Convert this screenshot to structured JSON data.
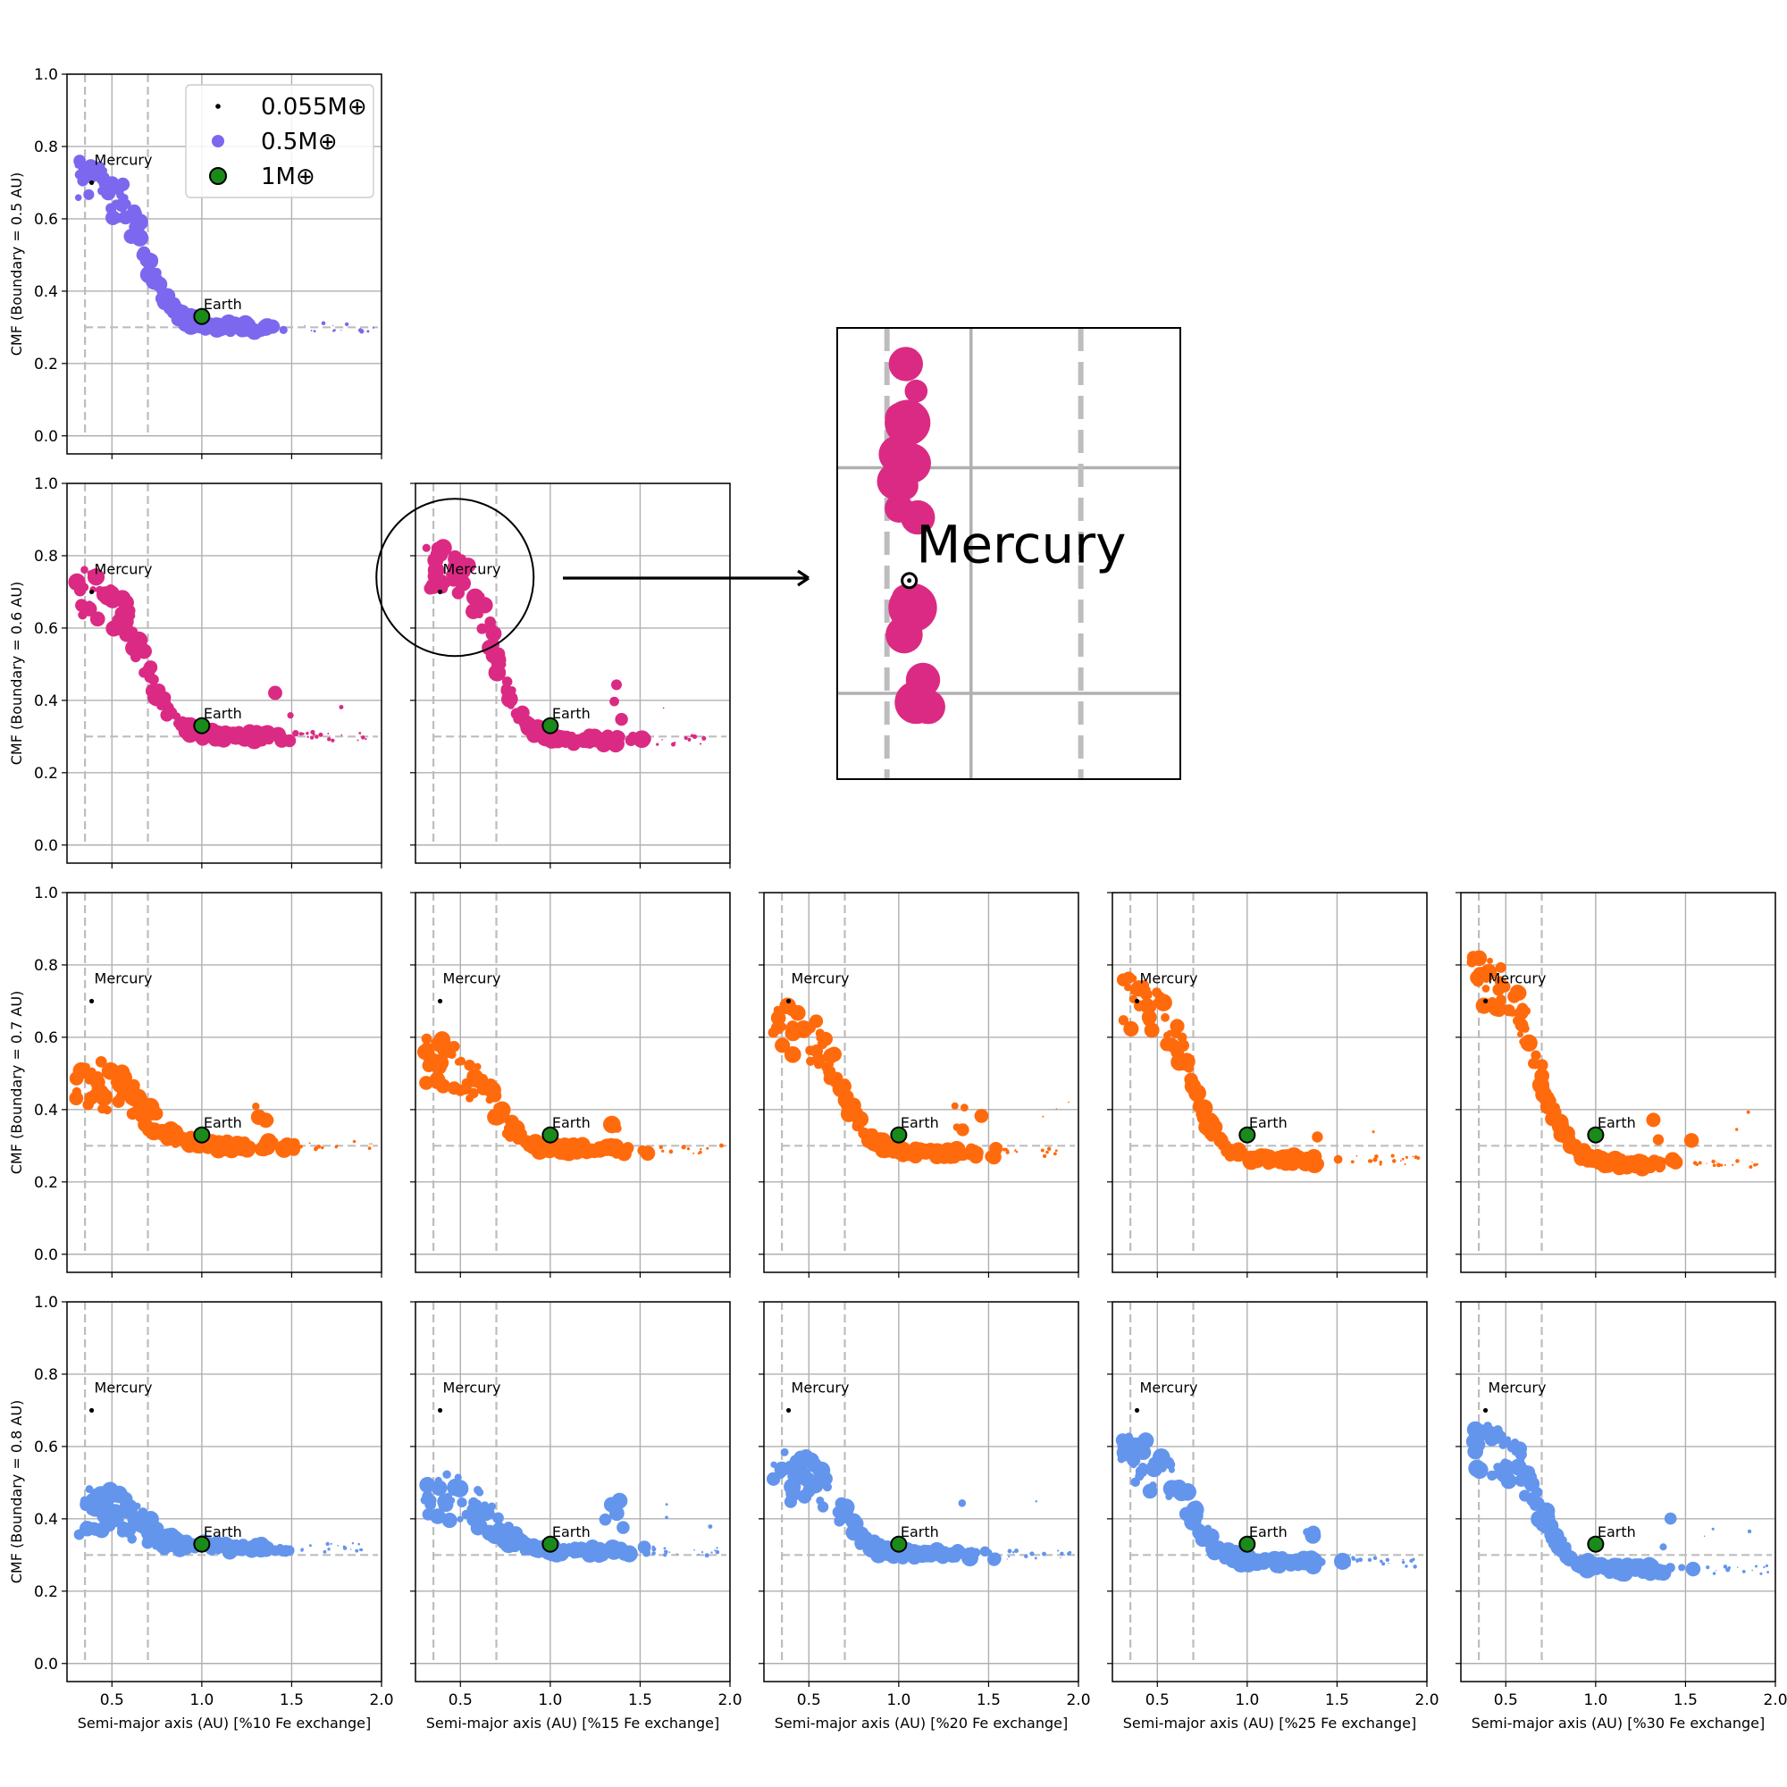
{
  "chart_data": {
    "type": "scatter",
    "xlim": [
      0.25,
      2.0
    ],
    "ylim": [
      -0.05,
      1.0
    ],
    "x_ticks": [
      "0.5",
      "1.0",
      "1.5",
      "2.0"
    ],
    "y_ticks": [
      "0.0",
      "0.2",
      "0.4",
      "0.6",
      "0.8",
      "1.0"
    ],
    "legend": [
      {
        "label": "0.055M⊕",
        "mass": 0.055,
        "color": "#000000"
      },
      {
        "label": "0.5M⊕",
        "mass": 0.5,
        "color": "#7b68ee"
      },
      {
        "label": "1M⊕",
        "mass": 1,
        "color": "#1a8a1a"
      }
    ],
    "reference_lines": {
      "x": [
        0.35,
        0.7
      ],
      "y": 0.3
    },
    "markers": {
      "mercury": {
        "label": "Mercury",
        "x": 0.387,
        "y": 0.7
      },
      "earth": {
        "label": "Earth",
        "x": 1.0,
        "y": 0.33
      }
    },
    "row_labels": [
      "CMF (Boundary = 0.5 AU)",
      "CMF (Boundary = 0.6 AU)",
      "CMF (Boundary = 0.7 AU)",
      "CMF (Boundary = 0.8 AU)"
    ],
    "column_labels": [
      "Semi-major axis (AU) [%10 Fe exchange]",
      "Semi-major axis (AU) [%15 Fe exchange]",
      "Semi-major axis (AU) [%20 Fe exchange]",
      "Semi-major axis (AU) [%25 Fe exchange]",
      "Semi-major axis (AU) [%30 Fe exchange]"
    ],
    "row_colors": [
      "#7b68ee",
      "#db2a84",
      "#ff6a0d",
      "#6495ed"
    ],
    "trend_parameters": [
      {
        "row": 0,
        "col": 0,
        "inner_cmf": 0.7,
        "outer_cmf": 0.3
      },
      {
        "row": 1,
        "col": 0,
        "inner_cmf": 0.7,
        "outer_cmf": 0.3
      },
      {
        "row": 1,
        "col": 1,
        "inner_cmf": 0.78,
        "outer_cmf": 0.29
      },
      {
        "row": 2,
        "col": 0,
        "inner_cmf": 0.47,
        "outer_cmf": 0.3
      },
      {
        "row": 2,
        "col": 1,
        "inner_cmf": 0.53,
        "outer_cmf": 0.29
      },
      {
        "row": 2,
        "col": 2,
        "inner_cmf": 0.63,
        "outer_cmf": 0.28
      },
      {
        "row": 2,
        "col": 3,
        "inner_cmf": 0.7,
        "outer_cmf": 0.26
      },
      {
        "row": 2,
        "col": 4,
        "inner_cmf": 0.76,
        "outer_cmf": 0.25
      },
      {
        "row": 3,
        "col": 0,
        "inner_cmf": 0.42,
        "outer_cmf": 0.32
      },
      {
        "row": 3,
        "col": 1,
        "inner_cmf": 0.47,
        "outer_cmf": 0.31
      },
      {
        "row": 3,
        "col": 2,
        "inner_cmf": 0.52,
        "outer_cmf": 0.3
      },
      {
        "row": 3,
        "col": 3,
        "inner_cmf": 0.56,
        "outer_cmf": 0.28
      },
      {
        "row": 3,
        "col": 4,
        "inner_cmf": 0.6,
        "outer_cmf": 0.26
      }
    ],
    "zoom": {
      "source_panel": {
        "row": 1,
        "col": 1
      },
      "label": "Mercury",
      "points": [
        {
          "x": 0.4,
          "y": 0.92,
          "s": 2.4
        },
        {
          "x": 0.46,
          "y": 0.86,
          "s": 1.6
        },
        {
          "x": 0.37,
          "y": 0.8,
          "s": 2.2
        },
        {
          "x": 0.41,
          "y": 0.79,
          "s": 3.2
        },
        {
          "x": 0.35,
          "y": 0.72,
          "s": 2.6
        },
        {
          "x": 0.43,
          "y": 0.7,
          "s": 2.8
        },
        {
          "x": 0.34,
          "y": 0.66,
          "s": 2.6
        },
        {
          "x": 0.39,
          "y": 0.65,
          "s": 2.0
        },
        {
          "x": 0.36,
          "y": 0.6,
          "s": 2.0
        },
        {
          "x": 0.47,
          "y": 0.58,
          "s": 2.4
        },
        {
          "x": 0.4,
          "y": 0.4,
          "s": 2.0
        },
        {
          "x": 0.44,
          "y": 0.38,
          "s": 3.4
        },
        {
          "x": 0.39,
          "y": 0.32,
          "s": 2.6
        },
        {
          "x": 0.5,
          "y": 0.22,
          "s": 2.4
        },
        {
          "x": 0.46,
          "y": 0.17,
          "s": 3.0
        },
        {
          "x": 0.53,
          "y": 0.16,
          "s": 2.4
        }
      ]
    }
  }
}
